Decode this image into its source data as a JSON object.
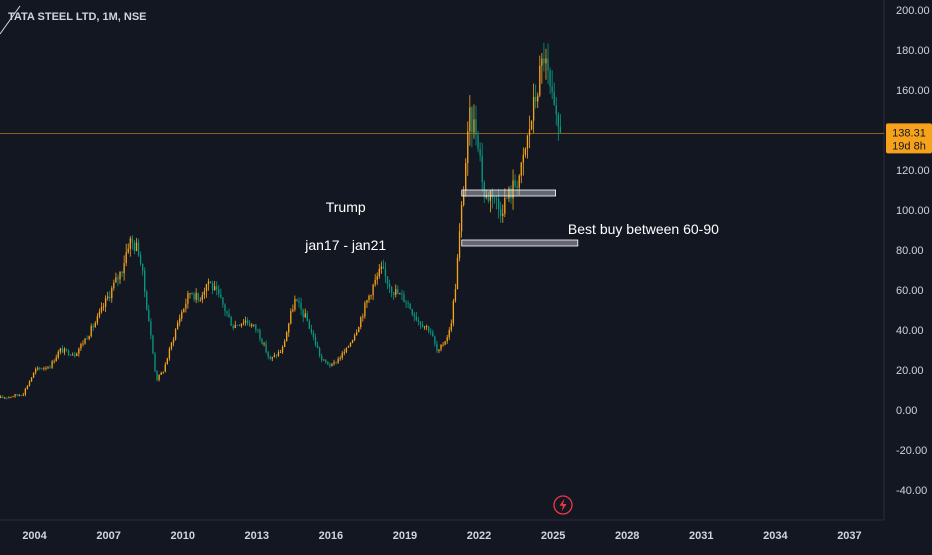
{
  "chart_data": {
    "type": "candlestick",
    "title": "TATA STEEL LTD, 1M, NSE",
    "ylim": [
      -55,
      205
    ],
    "y_ticks": [
      "200.00",
      "180.00",
      "160.00",
      "140.00",
      "120.00",
      "100.00",
      "80.00",
      "60.00",
      "40.00",
      "20.00",
      "0.00",
      "-20.00",
      "-40.00"
    ],
    "y_tick_values": [
      200,
      180,
      160,
      140,
      120,
      100,
      80,
      60,
      40,
      20,
      0,
      -20,
      -40
    ],
    "x_ticks": [
      "2004",
      "2007",
      "2010",
      "2013",
      "2016",
      "2019",
      "2022",
      "2025",
      "2028",
      "2031",
      "2034",
      "2037"
    ],
    "x_tick_years": [
      2004,
      2007,
      2010,
      2013,
      2016,
      2019,
      2022,
      2025,
      2028,
      2031,
      2034,
      2037
    ],
    "xlim_years": [
      2002.6,
      2038.4
    ],
    "last_price": {
      "label": "138.31",
      "value": 138.31,
      "countdown": "19d 8h",
      "color": "#f7a21b"
    },
    "zones": [
      {
        "name": "upper-zone",
        "y_low": 107,
        "y_high": 110,
        "x_start": 2021.3,
        "x_end": 2025.1
      },
      {
        "name": "lower-zone",
        "y_low": 82,
        "y_high": 85,
        "x_start": 2021.3,
        "x_end": 2026.0
      }
    ],
    "annotations": [
      {
        "name": "trump-label",
        "text": "Trump",
        "x": 2016.6,
        "y": 99
      },
      {
        "name": "trump-dates-label",
        "text": "jan17 - jan21",
        "x": 2016.6,
        "y": 80
      },
      {
        "name": "best-buy-label",
        "text": "Best buy between 60-90",
        "x": 2025.6,
        "y": 88
      }
    ],
    "anchors": [
      [
        2002.6,
        6
      ],
      [
        2003.5,
        8
      ],
      [
        2004.0,
        20
      ],
      [
        2004.6,
        22
      ],
      [
        2005.0,
        30
      ],
      [
        2005.6,
        28
      ],
      [
        2006.0,
        35
      ],
      [
        2006.5,
        45
      ],
      [
        2007.0,
        58
      ],
      [
        2007.5,
        70
      ],
      [
        2007.8,
        85
      ],
      [
        2008.2,
        80
      ],
      [
        2008.6,
        45
      ],
      [
        2008.9,
        15
      ],
      [
        2009.2,
        20
      ],
      [
        2009.8,
        45
      ],
      [
        2010.3,
        60
      ],
      [
        2010.6,
        55
      ],
      [
        2011.0,
        65
      ],
      [
        2011.5,
        55
      ],
      [
        2012.0,
        42
      ],
      [
        2012.5,
        45
      ],
      [
        2013.0,
        40
      ],
      [
        2013.5,
        25
      ],
      [
        2014.0,
        30
      ],
      [
        2014.5,
        55
      ],
      [
        2015.0,
        45
      ],
      [
        2015.6,
        25
      ],
      [
        2016.0,
        22
      ],
      [
        2016.6,
        30
      ],
      [
        2017.0,
        40
      ],
      [
        2017.6,
        60
      ],
      [
        2018.0,
        70
      ],
      [
        2018.5,
        60
      ],
      [
        2019.0,
        55
      ],
      [
        2019.5,
        45
      ],
      [
        2020.0,
        40
      ],
      [
        2020.3,
        28
      ],
      [
        2020.8,
        40
      ],
      [
        2021.0,
        60
      ],
      [
        2021.2,
        90
      ],
      [
        2021.4,
        120
      ],
      [
        2021.6,
        145
      ],
      [
        2021.9,
        140
      ],
      [
        2022.2,
        105
      ],
      [
        2022.5,
        110
      ],
      [
        2022.8,
        100
      ],
      [
        2023.3,
        110
      ],
      [
        2023.7,
        120
      ],
      [
        2024.0,
        140
      ],
      [
        2024.4,
        165
      ],
      [
        2024.6,
        178
      ],
      [
        2024.9,
        155
      ],
      [
        2025.1,
        142
      ],
      [
        2025.3,
        138.31
      ]
    ],
    "up_color": "#f7a21b",
    "down_color": "#089981"
  }
}
